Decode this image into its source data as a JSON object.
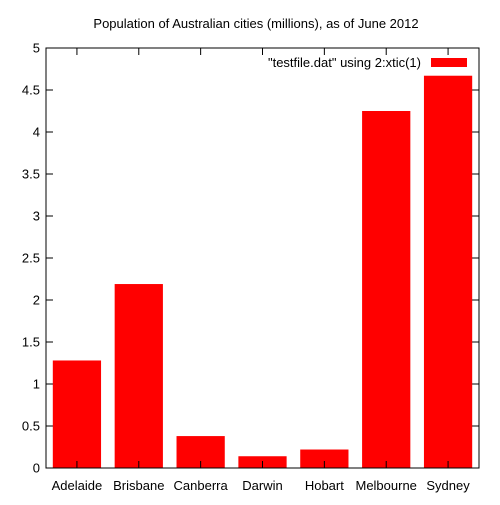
{
  "chart_data": {
    "type": "bar",
    "title": "Population of Australian cities (millions), as of June 2012",
    "xlabel": "",
    "ylabel": "",
    "categories": [
      "Adelaide",
      "Brisbane",
      "Canberra",
      "Darwin",
      "Hobart",
      "Melbourne",
      "Sydney"
    ],
    "series": [
      {
        "name": "\"testfile.dat\" using 2:xtic(1)",
        "values": [
          1.28,
          2.19,
          0.38,
          0.14,
          0.22,
          4.25,
          4.67
        ],
        "color": "#ff0000"
      }
    ],
    "ylim": [
      0,
      5
    ],
    "yticks": [
      "0",
      "0.5",
      "1",
      "1.5",
      "2",
      "2.5",
      "3",
      "3.5",
      "4",
      "4.5",
      "5"
    ],
    "grid": false,
    "legend_position": "top-right"
  }
}
